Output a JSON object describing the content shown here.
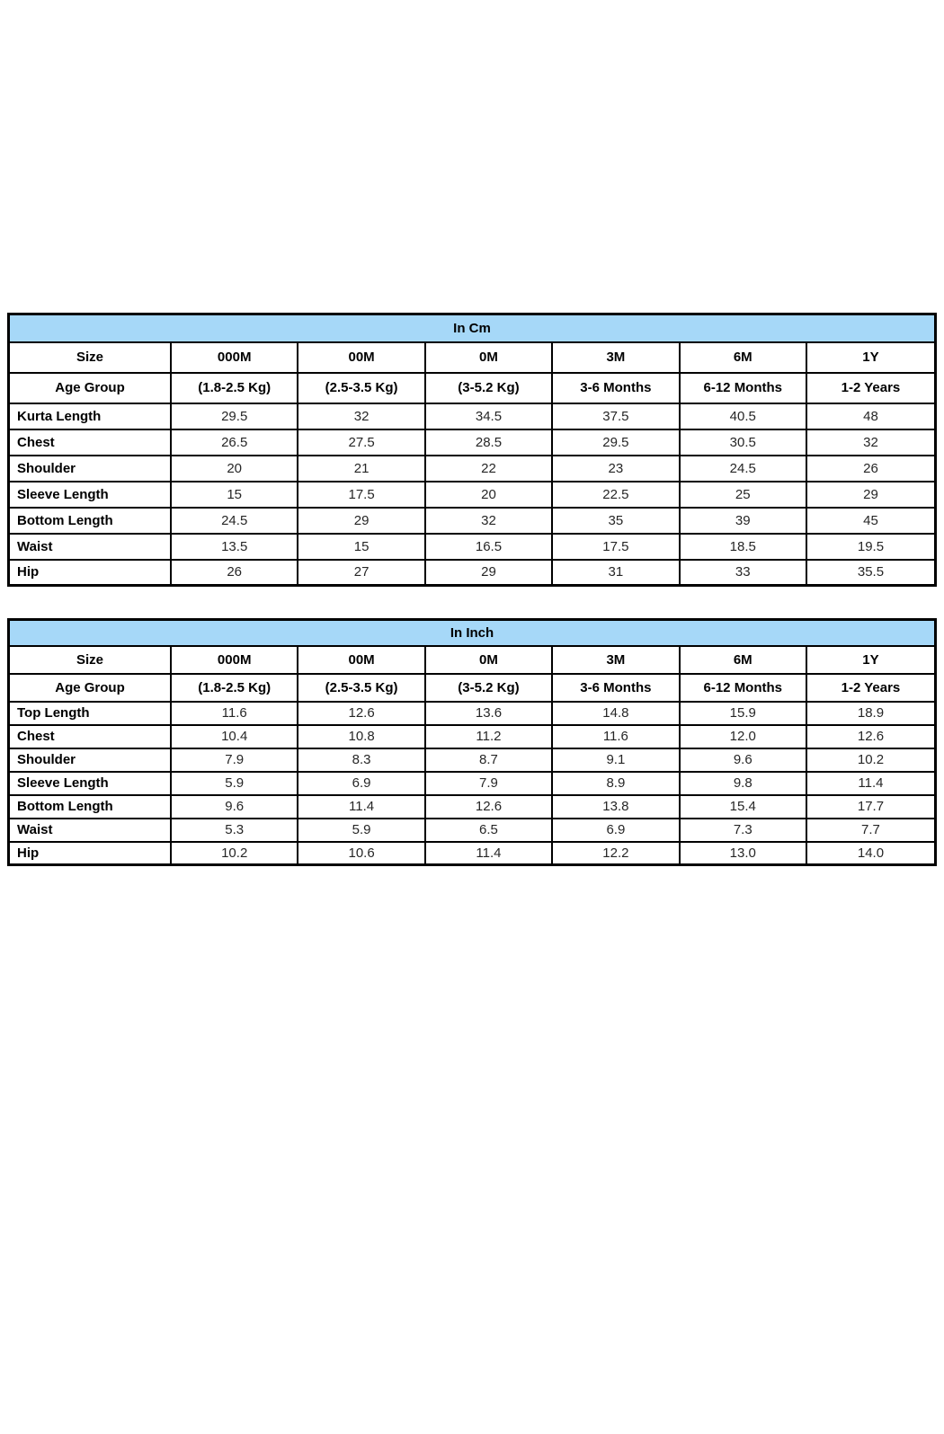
{
  "colors": {
    "title_fill": "#a6d8f8",
    "border": "#000000",
    "label_text": "#000000",
    "value_text": "#262626",
    "page_background": "#ffffff"
  },
  "tables": [
    {
      "title": "In Cm",
      "size_row": {
        "label": "Size",
        "values": [
          "000M",
          "00M",
          "0M",
          "3M",
          "6M",
          "1Y"
        ]
      },
      "age_row": {
        "label": "Age Group",
        "values": [
          "(1.8-2.5 Kg)",
          "(2.5-3.5 Kg)",
          "(3-5.2 Kg)",
          "3-6 Months",
          "6-12 Months",
          "1-2 Years"
        ]
      },
      "rows": [
        {
          "label": "Kurta Length",
          "values": [
            "29.5",
            "32",
            "34.5",
            "37.5",
            "40.5",
            "48"
          ]
        },
        {
          "label": "Chest",
          "values": [
            "26.5",
            "27.5",
            "28.5",
            "29.5",
            "30.5",
            "32"
          ]
        },
        {
          "label": "Shoulder",
          "values": [
            "20",
            "21",
            "22",
            "23",
            "24.5",
            "26"
          ]
        },
        {
          "label": "Sleeve Length",
          "values": [
            "15",
            "17.5",
            "20",
            "22.5",
            "25",
            "29"
          ]
        },
        {
          "label": "Bottom Length",
          "values": [
            "24.5",
            "29",
            "32",
            "35",
            "39",
            "45"
          ]
        },
        {
          "label": "Waist",
          "values": [
            "13.5",
            "15",
            "16.5",
            "17.5",
            "18.5",
            "19.5"
          ]
        },
        {
          "label": "Hip",
          "values": [
            "26",
            "27",
            "29",
            "31",
            "33",
            "35.5"
          ]
        }
      ]
    },
    {
      "title": "In Inch",
      "size_row": {
        "label": "Size",
        "values": [
          "000M",
          "00M",
          "0M",
          "3M",
          "6M",
          "1Y"
        ]
      },
      "age_row": {
        "label": "Age Group",
        "values": [
          "(1.8-2.5 Kg)",
          "(2.5-3.5 Kg)",
          "(3-5.2 Kg)",
          "3-6 Months",
          "6-12 Months",
          "1-2 Years"
        ]
      },
      "rows": [
        {
          "label": "Top Length",
          "values": [
            "11.6",
            "12.6",
            "13.6",
            "14.8",
            "15.9",
            "18.9"
          ]
        },
        {
          "label": "Chest",
          "values": [
            "10.4",
            "10.8",
            "11.2",
            "11.6",
            "12.0",
            "12.6"
          ]
        },
        {
          "label": "Shoulder",
          "values": [
            "7.9",
            "8.3",
            "8.7",
            "9.1",
            "9.6",
            "10.2"
          ]
        },
        {
          "label": "Sleeve Length",
          "values": [
            "5.9",
            "6.9",
            "7.9",
            "8.9",
            "9.8",
            "11.4"
          ]
        },
        {
          "label": "Bottom Length",
          "values": [
            "9.6",
            "11.4",
            "12.6",
            "13.8",
            "15.4",
            "17.7"
          ]
        },
        {
          "label": "Waist",
          "values": [
            "5.3",
            "5.9",
            "6.5",
            "6.9",
            "7.3",
            "7.7"
          ]
        },
        {
          "label": "Hip",
          "values": [
            "10.2",
            "10.6",
            "11.4",
            "12.2",
            "13.0",
            "14.0"
          ]
        }
      ]
    }
  ]
}
